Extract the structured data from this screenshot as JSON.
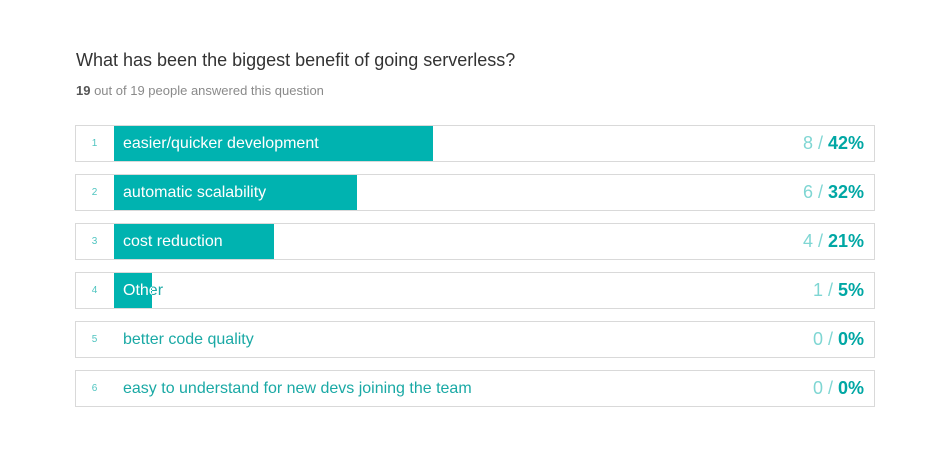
{
  "question": {
    "title": "What has been the biggest benefit of going serverless?",
    "answered_count": "19",
    "answered_suffix": " out of 19 people answered this question"
  },
  "colors": {
    "bar_fill": "#00b3b0",
    "label_text": "#1aa9a5",
    "count_text": "#7fd6d3",
    "percent_text": "#00a7a4"
  },
  "answers": [
    {
      "rank": "1",
      "label": "easier/quicker development",
      "count": "8",
      "percent": "42%",
      "fraction": 0.42
    },
    {
      "rank": "2",
      "label": "automatic scalability",
      "count": "6",
      "percent": "32%",
      "fraction": 0.32
    },
    {
      "rank": "3",
      "label": "cost reduction",
      "count": "4",
      "percent": "21%",
      "fraction": 0.21
    },
    {
      "rank": "4",
      "label": "Other",
      "count": "1",
      "percent": "5%",
      "fraction": 0.05
    },
    {
      "rank": "5",
      "label": "better code quality",
      "count": "0",
      "percent": "0%",
      "fraction": 0
    },
    {
      "rank": "6",
      "label": "easy to understand for new devs joining the team",
      "count": "0",
      "percent": "0%",
      "fraction": 0
    }
  ]
}
